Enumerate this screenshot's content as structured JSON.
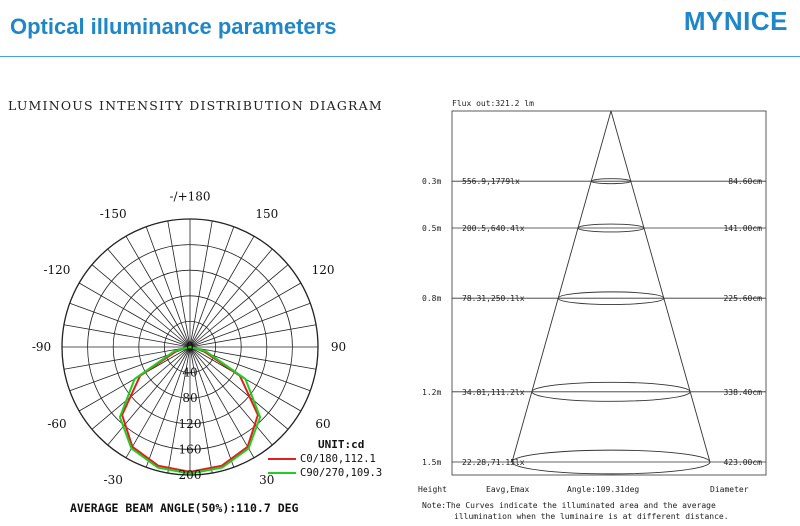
{
  "header": {
    "title": "Optical illuminance parameters",
    "brand": "MYNICE",
    "brand_color": "#1f86c8"
  },
  "chart_data": [
    {
      "type": "polar",
      "title": "LUMINOUS INTENSITY DISTRIBUTION DIAGRAM",
      "radial_ticks": [
        "0",
        "40",
        "80",
        "120",
        "160",
        "200"
      ],
      "radial_max": 200,
      "angle_labels": {
        "top": "-/+180",
        "left_upper1": "-150",
        "right_upper1": "150",
        "left_upper2": "-120",
        "right_upper2": "120",
        "left_mid": "-90",
        "right_mid": "90",
        "left_lower1": "-60",
        "right_lower1": "60",
        "left_lower2": "-30",
        "right_lower2": "30"
      },
      "unit_label": "UNIT:cd",
      "series": [
        {
          "name": "C0/180,112.1",
          "color": "#e02020",
          "angles_deg": [
            0,
            15,
            30,
            45,
            60,
            75,
            90
          ],
          "values": [
            195,
            192,
            180,
            150,
            90,
            20,
            0
          ]
        },
        {
          "name": "C90/270,109.3",
          "color": "#22cc22",
          "angles_deg": [
            0,
            15,
            30,
            45,
            60,
            75,
            90
          ],
          "values": [
            198,
            195,
            183,
            155,
            100,
            25,
            0
          ]
        }
      ],
      "footer": "AVERAGE BEAM ANGLE(50%):110.7 DEG"
    },
    {
      "type": "table",
      "title": "Flux out:321.2 lm",
      "beam_angle_deg": 109.31,
      "rows": [
        {
          "height": "0.3m",
          "eavg_emax": "556.9,1779lx",
          "diameter": "84.60cm",
          "height_m": 0.3,
          "diameter_cm": 84.6
        },
        {
          "height": "0.5m",
          "eavg_emax": "200.5,640.4lx",
          "diameter": "141.00cm",
          "height_m": 0.5,
          "diameter_cm": 141.0
        },
        {
          "height": "0.8m",
          "eavg_emax": "78.31,250.1lx",
          "diameter": "225.60cm",
          "height_m": 0.8,
          "diameter_cm": 225.6
        },
        {
          "height": "1.2m",
          "eavg_emax": "34.81,111.2lx",
          "diameter": "338.40cm",
          "height_m": 1.2,
          "diameter_cm": 338.4
        },
        {
          "height": "1.5m",
          "eavg_emax": "22.28,71.15lx",
          "diameter": "423.00cm",
          "height_m": 1.5,
          "diameter_cm": 423.0
        }
      ],
      "column_labels": {
        "height": "Height",
        "eavg": "Eavg,Emax",
        "angle": "Angle:109.31deg",
        "diameter": "Diameter"
      },
      "note_line1": "Note:The Curves indicate the illuminated area and the average",
      "note_line2": "illumination when the luminaire is at different distance."
    }
  ]
}
